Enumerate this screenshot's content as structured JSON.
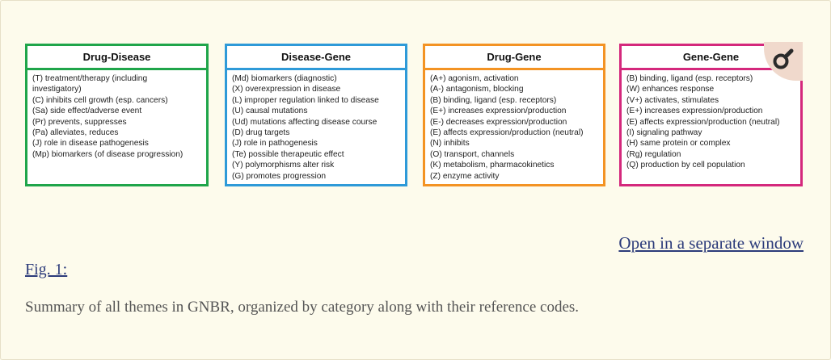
{
  "figure": {
    "boxes": [
      {
        "title": "Drug-Disease",
        "color": "#1fa54a",
        "items": [
          "(T) treatment/therapy (including",
          "investigatory)",
          "(C) inhibits cell growth (esp. cancers)",
          "(Sa) side effect/adverse event",
          "(Pr) prevents, suppresses",
          "(Pa) alleviates, reduces",
          "(J) role in disease pathogenesis",
          "(Mp) biomarkers (of disease progression)"
        ]
      },
      {
        "title": "Disease-Gene",
        "color": "#2e9ad8",
        "items": [
          "(Md) biomarkers (diagnostic)",
          "(X) overexpression in disease",
          "(L) improper regulation linked to disease",
          "(U) causal mutations",
          "(Ud) mutations affecting disease course",
          "(D) drug targets",
          "(J) role in pathogenesis",
          "(Te) possible therapeutic effect",
          "(Y) polymorphisms alter risk",
          "(G) promotes progression"
        ]
      },
      {
        "title": "Drug-Gene",
        "color": "#f39323",
        "items": [
          "(A+) agonism, activation",
          "(A-) antagonism, blocking",
          "(B) binding, ligand (esp. receptors)",
          "(E+) increases expression/production",
          "(E-) decreases expression/production",
          "(E) affects expression/production (neutral)",
          "(N) inhibits",
          "(O) transport, channels",
          "(K) metabolism, pharmacokinetics",
          "(Z) enzyme activity"
        ]
      },
      {
        "title": "Gene-Gene",
        "color": "#d4287c",
        "items": [
          "(B) binding, ligand (esp. receptors)",
          "(W) enhances response",
          "(V+) activates, stimulates",
          "(E+) increases expression/production",
          "(E) affects expression/production (neutral)",
          "(I) signaling pathway",
          "(H) same protein or complex",
          "(Rg) regulation",
          "(Q) production by cell population"
        ]
      }
    ],
    "zoom_icon": "magnifier-icon"
  },
  "links": {
    "open_window": "Open in a separate window",
    "fig_label": "Fig. 1:"
  },
  "caption": "Summary of all themes in GNBR, organized by category along with their reference codes."
}
